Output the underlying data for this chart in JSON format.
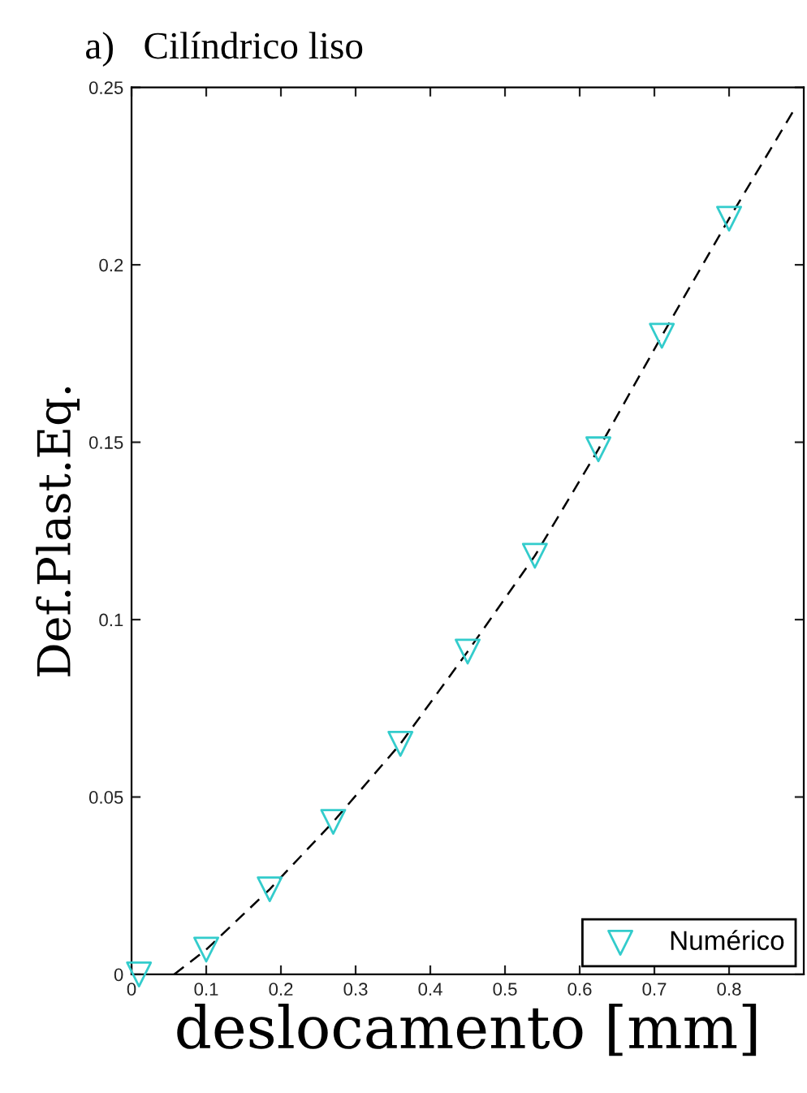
{
  "chart_data": {
    "type": "scatter",
    "title": "a)   Cilíndrico liso",
    "xlabel": "deslocamento [mm]",
    "ylabel": "Def.Plast.Eq.",
    "xlim": [
      0,
      0.9
    ],
    "ylim": [
      0,
      0.25
    ],
    "xticks": [
      0,
      0.1,
      0.2,
      0.3,
      0.4,
      0.5,
      0.6,
      0.7,
      0.8
    ],
    "yticks": [
      0,
      0.05,
      0.1,
      0.15,
      0.2,
      0.25
    ],
    "legend": "bottom right",
    "grid": false,
    "series": [
      {
        "type": "line",
        "color": "#000000",
        "line_style": "dashed",
        "marker": "none",
        "x": [
          0.057,
          0.1,
          0.185,
          0.27,
          0.36,
          0.45,
          0.54,
          0.625,
          0.71,
          0.8,
          0.885
        ],
        "values": [
          0,
          0.007,
          0.024,
          0.043,
          0.065,
          0.091,
          0.118,
          0.148,
          0.18,
          0.213,
          0.243
        ]
      },
      {
        "name": "Numérico",
        "color": "#33cccc",
        "marker": "triangle",
        "x": [
          0.01,
          0.1,
          0.185,
          0.27,
          0.36,
          0.45,
          0.54,
          0.625,
          0.71,
          0.8
        ],
        "values": [
          0,
          0.007,
          0.024,
          0.043,
          0.065,
          0.091,
          0.118,
          0.148,
          0.18,
          0.213
        ]
      }
    ]
  }
}
